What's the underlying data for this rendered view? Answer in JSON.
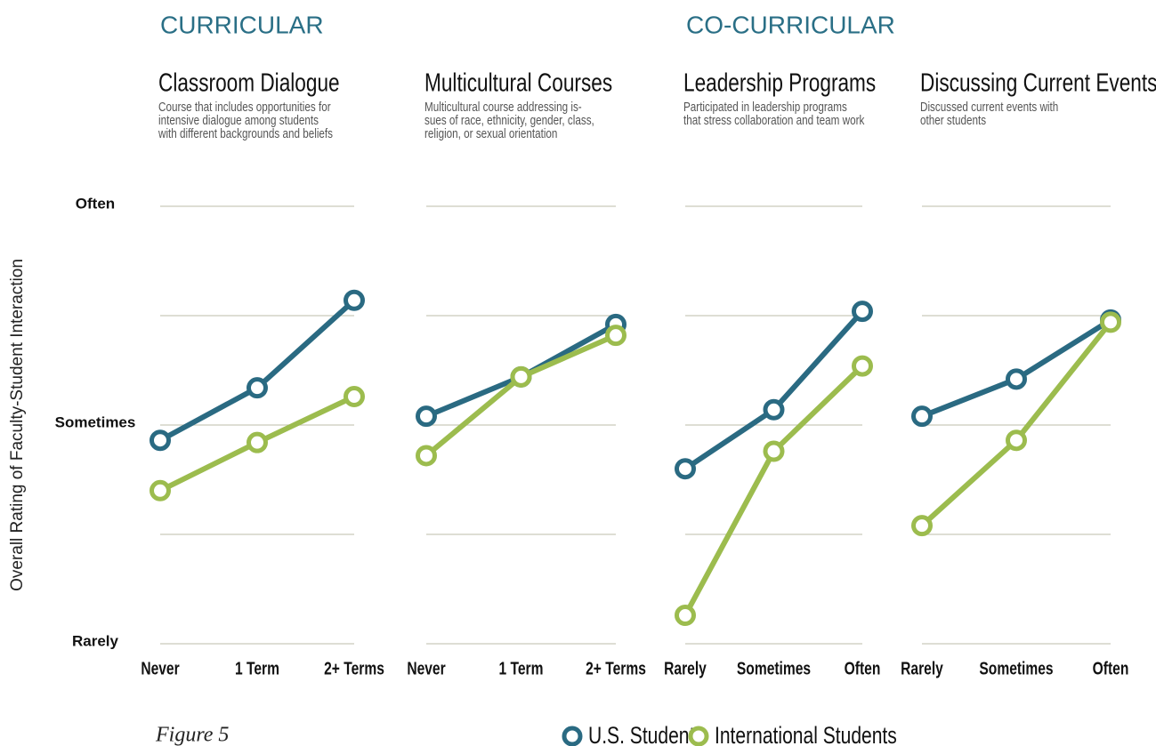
{
  "sections": [
    "CURRICULAR",
    "CO-CURRICULAR"
  ],
  "y_label": "Overall Rating of Faculty-Student Interaction",
  "caption": "Figure 5",
  "chart_data": [
    {
      "type": "line",
      "title": "Classroom Dialogue",
      "subtitle": [
        "Course that includes opportunities for",
        "intensive dialogue among students",
        "with different backgrounds and beliefs"
      ],
      "categories": [
        "Never",
        "1 Term",
        "2+ Terms"
      ],
      "ylim": [
        1,
        3
      ],
      "yticks": [
        {
          "value": 1,
          "label": "Rarely"
        },
        {
          "value": 2,
          "label": "Sometimes"
        },
        {
          "value": 3,
          "label": "Often"
        }
      ],
      "ygrid": [
        1,
        1.5,
        2,
        2.5,
        3
      ],
      "series": [
        {
          "name": "U.S. Students",
          "color": "#2a6a82",
          "values": [
            1.93,
            2.17,
            2.57
          ]
        },
        {
          "name": "International Students",
          "color": "#9cbc4e",
          "values": [
            1.7,
            1.92,
            2.13
          ]
        }
      ]
    },
    {
      "type": "line",
      "title": "Multicultural Courses",
      "subtitle": [
        "Multicultural course addressing is-",
        "sues of race, ethnicity, gender, class,",
        "religion, or sexual orientation"
      ],
      "categories": [
        "Never",
        "1 Term",
        "2+ Terms"
      ],
      "ylim": [
        1,
        3
      ],
      "ygrid": [
        1,
        1.5,
        2,
        2.5,
        3
      ],
      "series": [
        {
          "color": "#2a6a82",
          "values": [
            2.04,
            2.22,
            2.46
          ]
        },
        {
          "color": "#9cbc4e",
          "values": [
            1.86,
            2.22,
            2.41
          ]
        }
      ]
    },
    {
      "type": "line",
      "title": "Leadership Programs",
      "subtitle": [
        "Participated in leadership programs",
        "that stress collaboration and team work"
      ],
      "categories": [
        "Rarely",
        "Sometimes",
        "Often"
      ],
      "ylim": [
        1,
        3
      ],
      "ygrid": [
        1,
        1.5,
        2,
        2.5,
        3
      ],
      "series": [
        {
          "color": "#2a6a82",
          "values": [
            1.8,
            2.07,
            2.52
          ]
        },
        {
          "color": "#9cbc4e",
          "values": [
            1.13,
            1.88,
            2.27
          ]
        }
      ]
    },
    {
      "type": "line",
      "title": "Discussing Current Events",
      "subtitle": [
        "Discussed current events with",
        "other students"
      ],
      "categories": [
        "Rarely",
        "Sometimes",
        "Often"
      ],
      "ylim": [
        1,
        3
      ],
      "ygrid": [
        1,
        1.5,
        2,
        2.5,
        3
      ],
      "series": [
        {
          "color": "#2a6a82",
          "values": [
            2.04,
            2.21,
            2.48
          ]
        },
        {
          "color": "#9cbc4e",
          "values": [
            1.54,
            1.93,
            2.47
          ]
        }
      ]
    }
  ]
}
